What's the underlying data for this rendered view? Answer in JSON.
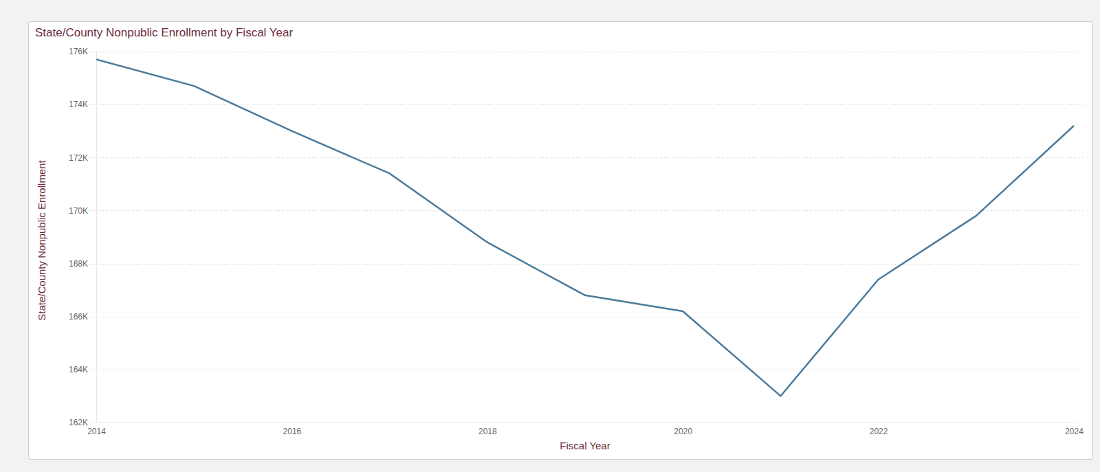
{
  "chart_data": {
    "type": "line",
    "title": "State/County Nonpublic Enrollment by Fiscal Year",
    "x_label": "Fiscal Year",
    "y_label": "State/County Nonpublic Enrollment",
    "x": [
      2014,
      2015,
      2016,
      2017,
      2018,
      2019,
      2020,
      2021,
      2022,
      2023,
      2024
    ],
    "values": [
      175700,
      174700,
      173000,
      171400,
      168800,
      166800,
      166200,
      163000,
      167400,
      169800,
      173200
    ],
    "color": "#4a7a9c",
    "xlim": [
      2014,
      2024
    ],
    "xticks": [
      2014,
      2016,
      2018,
      2020,
      2022,
      2024
    ],
    "ylim": [
      162000,
      176000
    ],
    "yticks": [
      {
        "value": 162000,
        "label": "162K"
      },
      {
        "value": 164000,
        "label": "164K"
      },
      {
        "value": 166000,
        "label": "166K"
      },
      {
        "value": 168000,
        "label": "168K"
      },
      {
        "value": 170000,
        "label": "170K"
      },
      {
        "value": 172000,
        "label": "172K"
      },
      {
        "value": 174000,
        "label": "174K"
      },
      {
        "value": 176000,
        "label": "176K"
      }
    ],
    "grid": true
  }
}
